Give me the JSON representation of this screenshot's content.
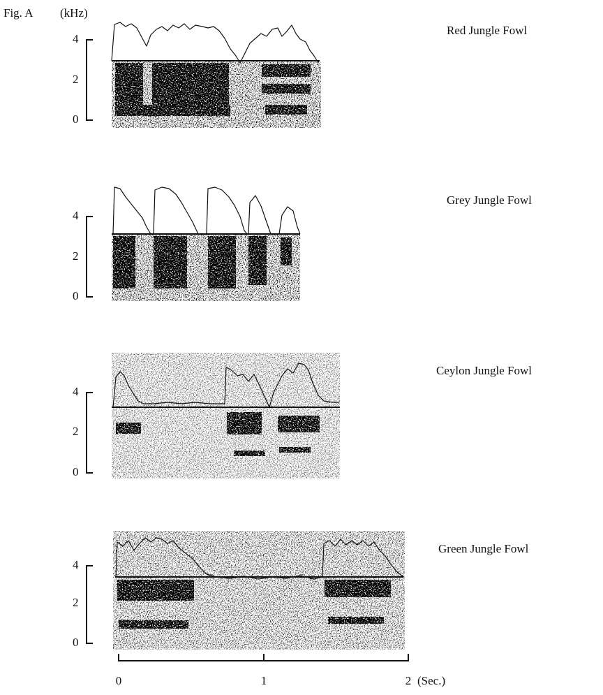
{
  "figure": {
    "label": "Fig. A",
    "y_unit": "(kHz)",
    "panels": [
      {
        "name": "Red Jungle Fowl",
        "y_tick_labels": [
          "4",
          "2",
          "0"
        ]
      },
      {
        "name": "Grey Jungle Fowl",
        "y_tick_labels": [
          "4",
          "2",
          "0"
        ]
      },
      {
        "name": "Ceylon Jungle Fowl",
        "y_tick_labels": [
          "4",
          "2",
          "0"
        ]
      },
      {
        "name": "Green Jungle Fowl",
        "y_tick_labels": [
          "4",
          "2",
          "0"
        ]
      }
    ],
    "x_tick_labels": [
      "0",
      "1",
      "2"
    ],
    "x_unit": "(Sec.)"
  }
}
